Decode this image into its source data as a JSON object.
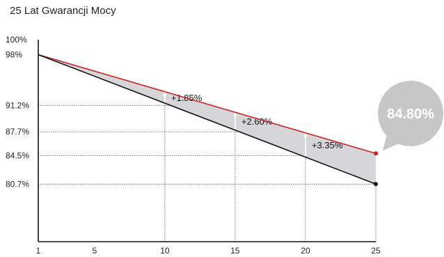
{
  "chart_data": {
    "type": "line",
    "title": "25 Lat Gwarancji Mocy",
    "x_ticks": [
      1,
      5,
      10,
      15,
      20,
      25
    ],
    "xlim": [
      1,
      25
    ],
    "y_ticks": [
      {
        "value": 100,
        "label": "100%"
      },
      {
        "value": 98,
        "label": "98%"
      },
      {
        "value": 91.2,
        "label": "91.2%"
      },
      {
        "value": 87.7,
        "label": "87.7%"
      },
      {
        "value": 84.5,
        "label": "84.5%"
      },
      {
        "value": 80.7,
        "label": "80.7%"
      }
    ],
    "ylim": [
      73,
      100
    ],
    "series": [
      {
        "color": "#cc1f1f",
        "points": [
          [
            1,
            98
          ],
          [
            25,
            84.8
          ]
        ]
      },
      {
        "color": "#111111",
        "points": [
          [
            1,
            98
          ],
          [
            25,
            80.7
          ]
        ]
      }
    ],
    "area_between_color": "#d6d6da",
    "gain_annotations": [
      {
        "x": 10,
        "label": "+1.85%"
      },
      {
        "x": 15,
        "label": "+2.60%"
      },
      {
        "x": 20,
        "label": "+3.35%"
      }
    ],
    "callout": {
      "value_label": "84.80%",
      "color": "#c7c7c7",
      "text_color": "#ffffff"
    }
  }
}
